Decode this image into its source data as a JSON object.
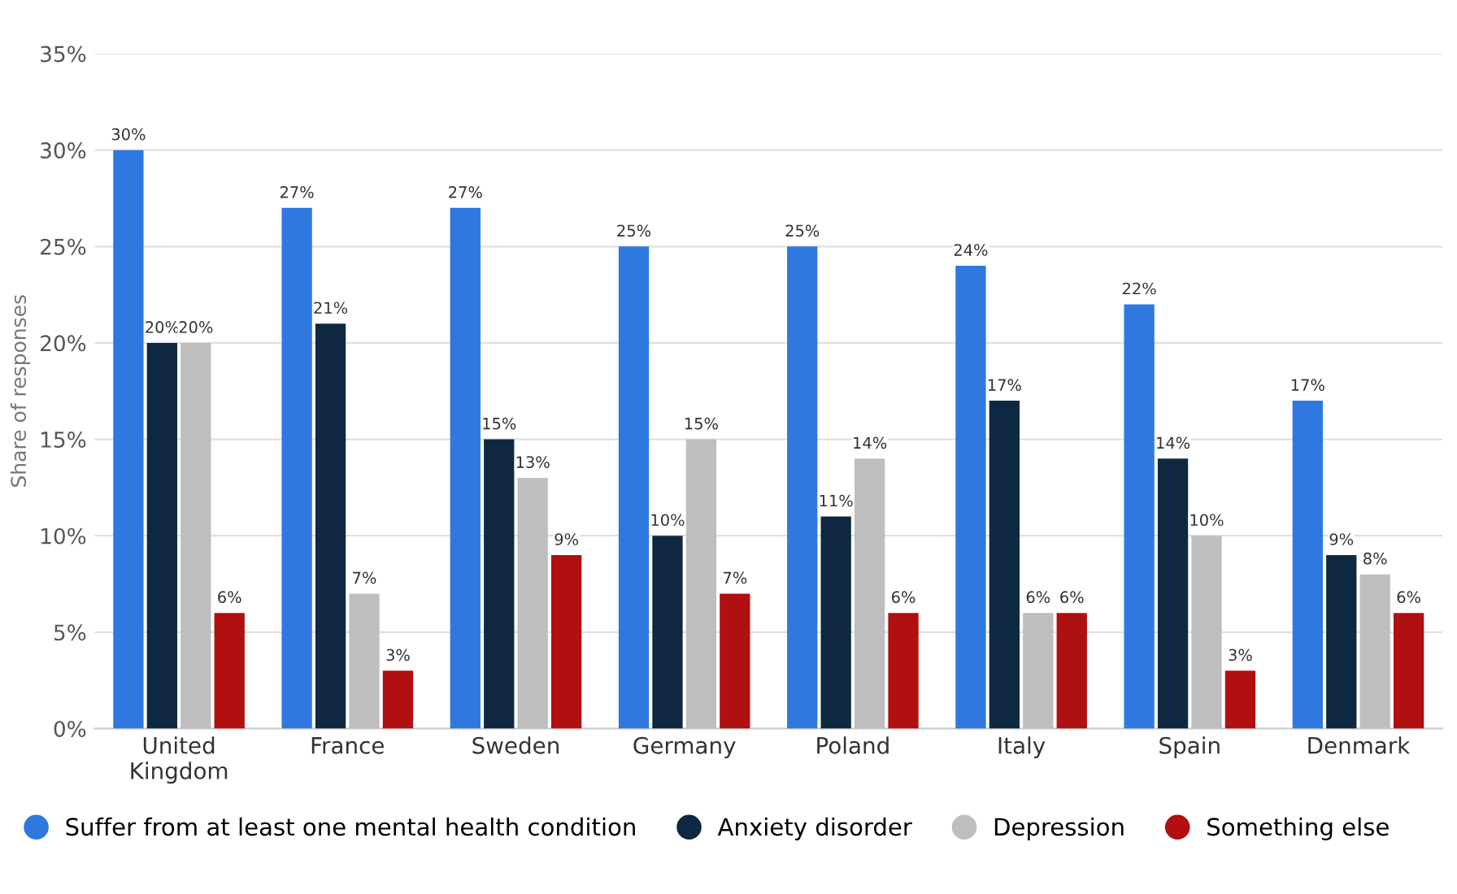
{
  "chart_data": {
    "type": "bar",
    "ylabel": "Share of responses",
    "categories": [
      "United\nKingdom",
      "France",
      "Sweden",
      "Germany",
      "Poland",
      "Italy",
      "Spain",
      "Denmark"
    ],
    "series": [
      {
        "name": "Suffer from at least one mental health condition",
        "color": "#2e78e0",
        "values": [
          30,
          27,
          27,
          25,
          25,
          24,
          22,
          17
        ],
        "value_labels": [
          "30%",
          "27%",
          "27%",
          "25%",
          "25%",
          "24%",
          "22%",
          "17%"
        ]
      },
      {
        "name": "Anxiety disorder",
        "color": "#0e2841",
        "values": [
          20,
          21,
          15,
          10,
          11,
          17,
          14,
          9
        ],
        "value_labels": [
          "20%",
          "21%",
          "15%",
          "10%",
          "11%",
          "17%",
          "14%",
          "9%"
        ]
      },
      {
        "name": "Depression",
        "color": "#bebebe",
        "values": [
          20,
          7,
          13,
          15,
          14,
          6,
          10,
          8
        ],
        "value_labels": [
          "20%",
          "7%",
          "13%",
          "15%",
          "14%",
          "6%",
          "10%",
          "8%"
        ]
      },
      {
        "name": "Something else",
        "color": "#b0100f",
        "values": [
          6,
          3,
          9,
          7,
          6,
          6,
          3,
          6
        ],
        "value_labels": [
          "6%",
          "3%",
          "9%",
          "7%",
          "6%",
          "6%",
          "3%",
          "6%"
        ]
      }
    ],
    "ylim": [
      0,
      35
    ],
    "yticks": [
      {
        "value": 0,
        "label": "0%"
      },
      {
        "value": 5,
        "label": "5%"
      },
      {
        "value": 10,
        "label": "10%"
      },
      {
        "value": 15,
        "label": "15%"
      },
      {
        "value": 20,
        "label": "20%"
      },
      {
        "value": 25,
        "label": "25%"
      },
      {
        "value": 30,
        "label": "30%"
      },
      {
        "value": 35,
        "label": "35%"
      }
    ],
    "grid": "y",
    "legend": "bottom"
  }
}
